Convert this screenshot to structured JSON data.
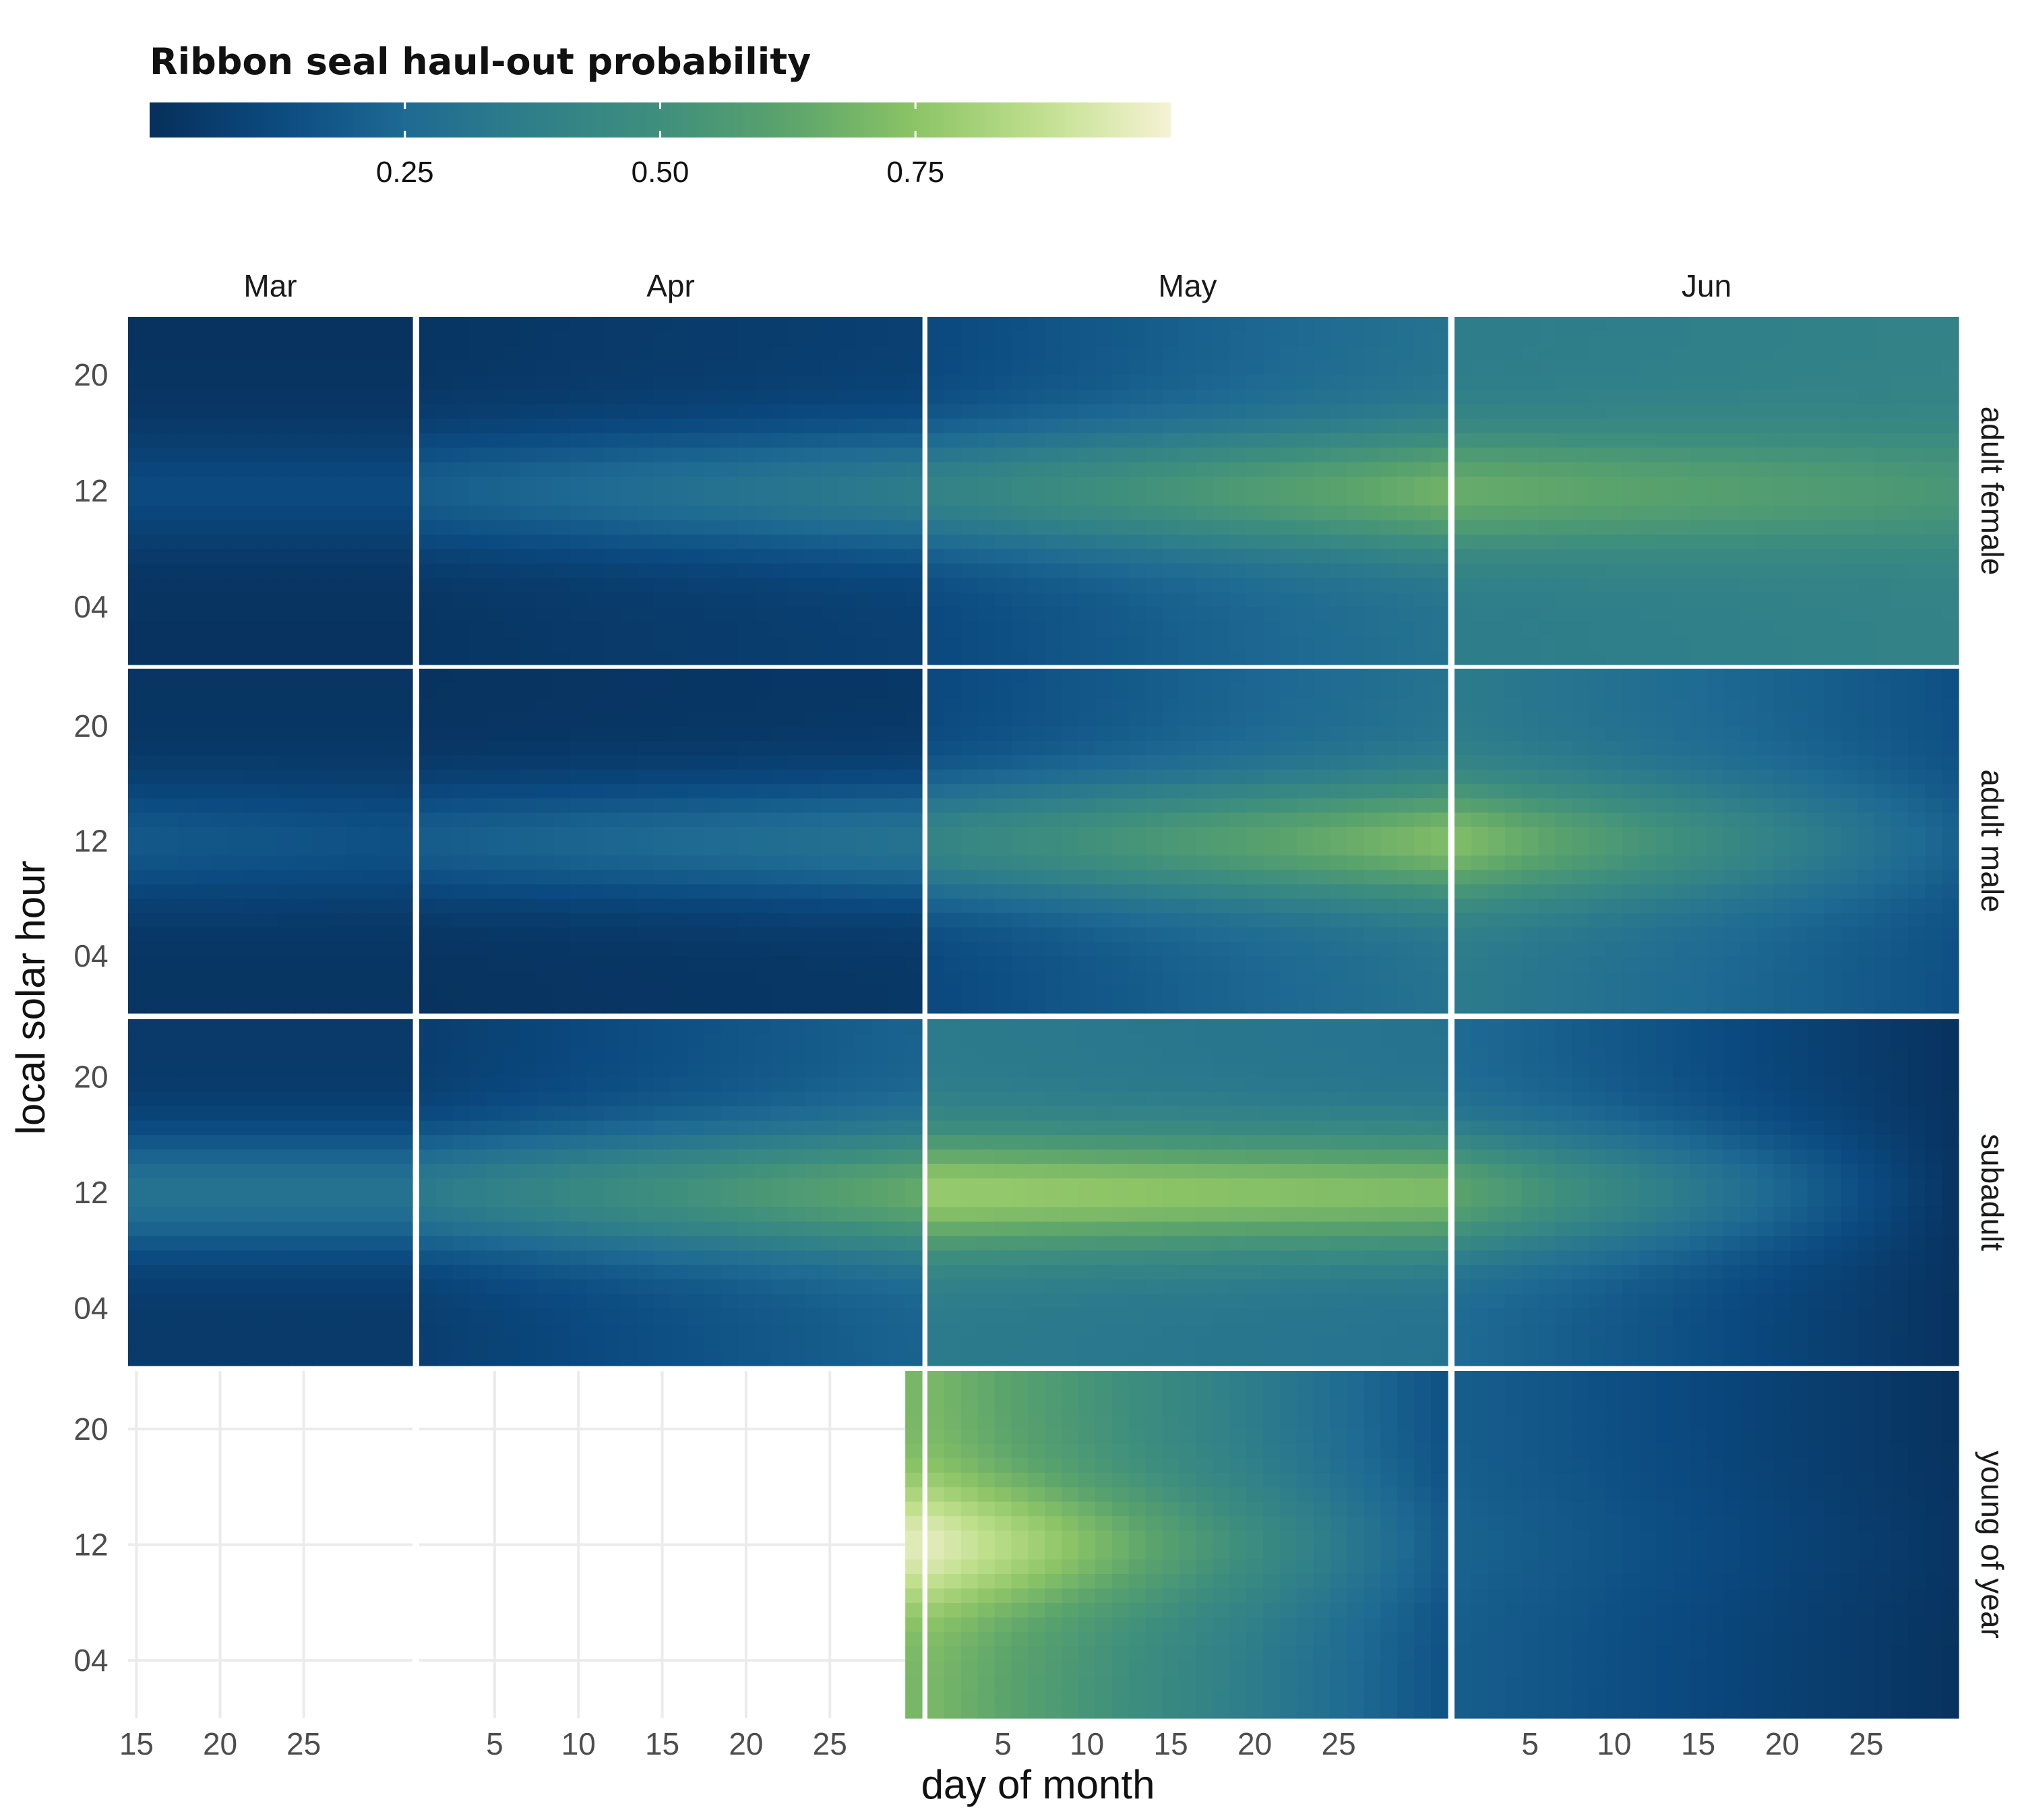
{
  "chart_data": {
    "type": "heatmap",
    "title": "",
    "xlabel": "day of month",
    "ylabel": "local solar hour",
    "legend": {
      "title": "Ribbon seal haul-out probability",
      "ticks": [
        "0.25",
        "0.50",
        "0.75"
      ],
      "tick_values": [
        0.25,
        0.5,
        0.75
      ],
      "range": [
        0,
        1
      ],
      "placement": "top-left",
      "colors": [
        "#072f5a",
        "#0b4a80",
        "#1e6a93",
        "#2f7f8a",
        "#3f8f7d",
        "#5aa36c",
        "#8cc466",
        "#c1e08e",
        "#f6f2d4"
      ]
    },
    "grid": true,
    "columns": [
      {
        "label": "Mar",
        "start_day": 15,
        "end_day": 31,
        "ticks": [
          15,
          20,
          25
        ]
      },
      {
        "label": "Apr",
        "start_day": 1,
        "end_day": 30,
        "ticks": [
          5,
          10,
          15,
          20,
          25
        ]
      },
      {
        "label": "May",
        "start_day": 1,
        "end_day": 31,
        "ticks": [
          5,
          10,
          15,
          20,
          25
        ]
      },
      {
        "label": "Jun",
        "start_day": 1,
        "end_day": 30,
        "ticks": [
          5,
          10,
          15,
          20,
          25
        ]
      }
    ],
    "rows": [
      "adult female",
      "adult male",
      "subadult",
      "young of year"
    ],
    "y_ticks": [
      "20",
      "12",
      "04"
    ],
    "y_tick_values": [
      20,
      12,
      4
    ],
    "ylim": [
      0,
      24
    ],
    "series": [
      {
        "name": "adult female",
        "peak_by_month": {
          "Mar": [
            0.12,
            0.12
          ],
          "Apr": [
            0.2,
            0.36
          ],
          "May": [
            0.4,
            0.68
          ],
          "Jun": [
            0.66,
            0.55
          ]
        },
        "night_by_month": {
          "Mar": [
            0.02,
            0.02
          ],
          "Apr": [
            0.03,
            0.08
          ],
          "May": [
            0.12,
            0.3
          ],
          "Jun": [
            0.36,
            0.4
          ]
        }
      },
      {
        "name": "adult male",
        "peak_by_month": {
          "Mar": [
            0.18,
            0.15
          ],
          "Apr": [
            0.2,
            0.3
          ],
          "May": [
            0.42,
            0.72
          ],
          "Jun": [
            0.72,
            0.22
          ]
        },
        "night_by_month": {
          "Mar": [
            0.03,
            0.03
          ],
          "Apr": [
            0.02,
            0.04
          ],
          "May": [
            0.12,
            0.3
          ],
          "Jun": [
            0.35,
            0.15
          ]
        }
      },
      {
        "name": "subadult",
        "peak_by_month": {
          "Mar": [
            0.3,
            0.3
          ],
          "Apr": [
            0.35,
            0.65
          ],
          "May": [
            0.78,
            0.72
          ],
          "Jun": [
            0.62,
            0.03
          ]
        },
        "night_by_month": {
          "Mar": [
            0.05,
            0.05
          ],
          "Apr": [
            0.07,
            0.22
          ],
          "May": [
            0.35,
            0.3
          ],
          "Jun": [
            0.25,
            0.02
          ]
        }
      },
      {
        "name": "young of year",
        "data_start": {
          "month": "Apr",
          "day": 30
        },
        "peak_by_month": {
          "Apr": [
            0.95,
            0.95
          ],
          "May": [
            0.95,
            0.2
          ],
          "Jun": [
            0.22,
            0.03
          ]
        },
        "night_by_month": {
          "Apr": [
            0.7,
            0.7
          ],
          "May": [
            0.7,
            0.16
          ],
          "Jun": [
            0.2,
            0.02
          ]
        }
      }
    ]
  }
}
